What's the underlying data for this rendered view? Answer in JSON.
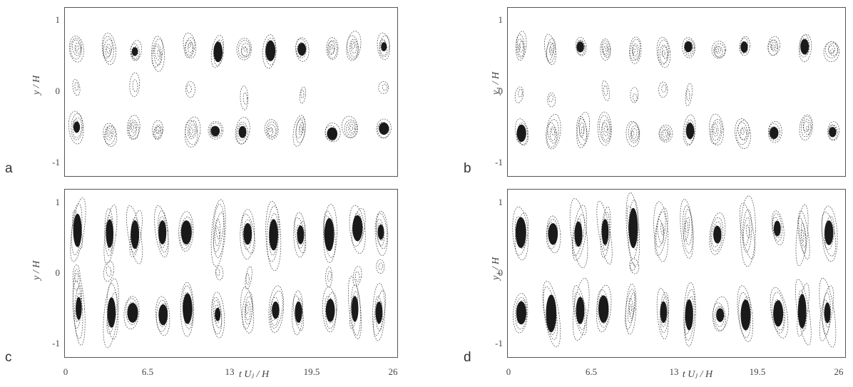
{
  "figure": {
    "panels": [
      {
        "id": "a",
        "letter": "a",
        "ylabel": "y / H",
        "yticks": [
          "1",
          "0",
          "-1"
        ],
        "show_xaxis": false,
        "intensity": 0.45
      },
      {
        "id": "b",
        "letter": "b",
        "ylabel": "y₁ / H",
        "yticks": [
          "1",
          "0",
          "-1"
        ],
        "show_xaxis": false,
        "intensity": 0.35
      },
      {
        "id": "c",
        "letter": "c",
        "ylabel": "y / H",
        "yticks": [
          "1",
          "0",
          "-1"
        ],
        "show_xaxis": true,
        "intensity": 0.85
      },
      {
        "id": "d",
        "letter": "d",
        "ylabel": "y₁ / H",
        "yticks": [
          "1",
          "0",
          "-1"
        ],
        "show_xaxis": true,
        "intensity": 0.7
      }
    ],
    "xaxis": {
      "ticks": [
        "0",
        "6.5",
        "13",
        "19.5",
        "26"
      ],
      "label": "t Uⱼ / H",
      "range": [
        0,
        26
      ]
    },
    "yaxis": {
      "range": [
        -1.2,
        1.2
      ],
      "tick_values": [
        1,
        0,
        -1
      ]
    },
    "colors": {
      "contour": "#4a4a4a",
      "fill_dark": "#1a1a1a",
      "frame": "#555555"
    }
  }
}
